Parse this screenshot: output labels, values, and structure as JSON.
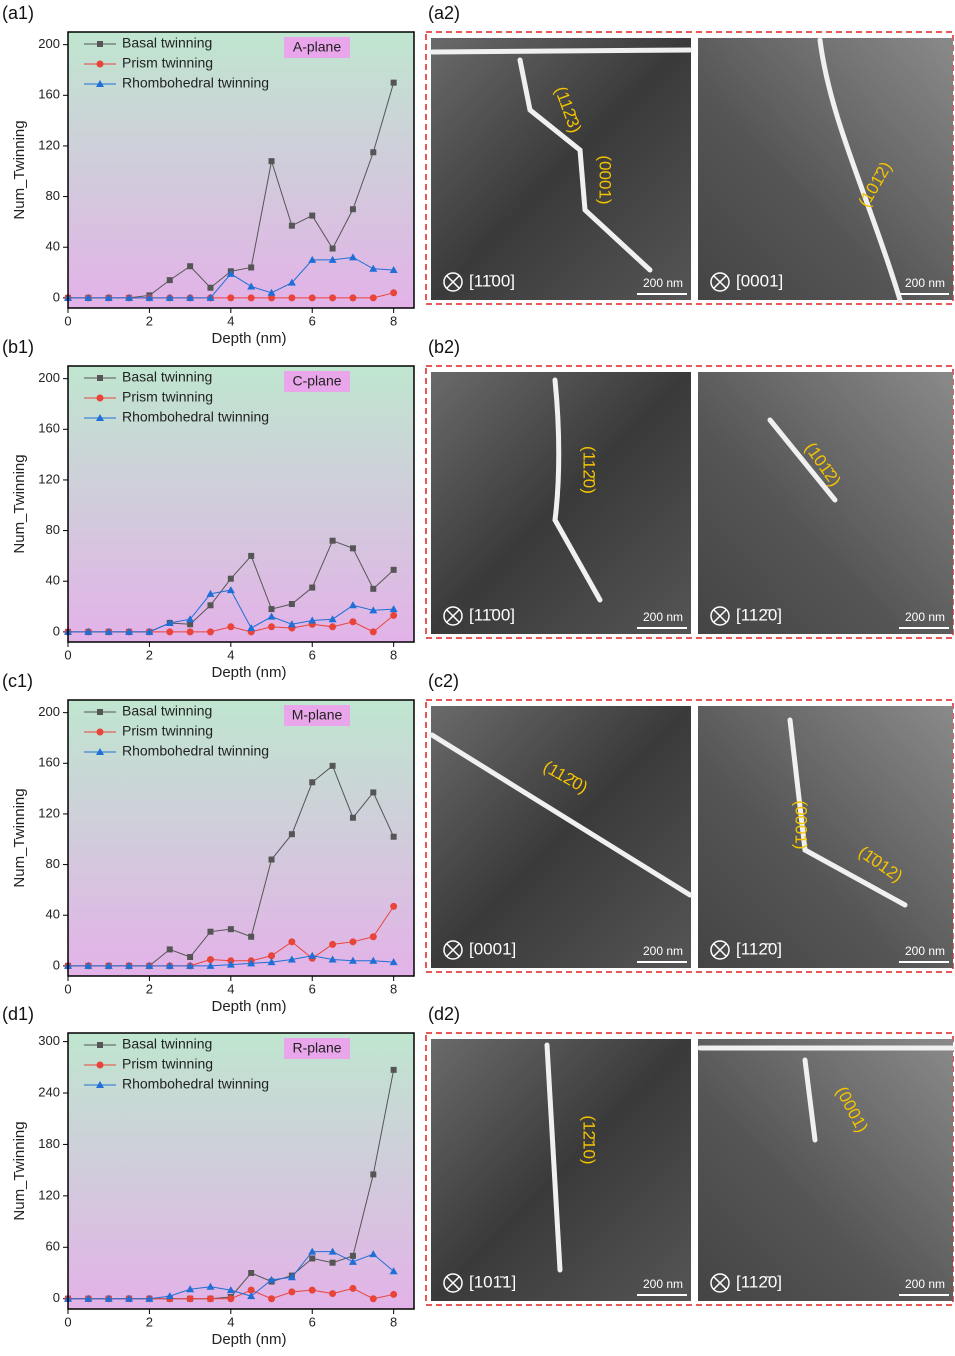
{
  "chart_data": [
    {
      "type": "line",
      "panel_label": "(a1)",
      "tag": "A-plane",
      "x_label": "Depth (nm)",
      "y_label": "Num_Twinning",
      "x": [
        0,
        0.5,
        1,
        1.5,
        2,
        2.5,
        3,
        3.5,
        4,
        4.5,
        5,
        5.5,
        6,
        6.5,
        7,
        7.5,
        8
      ],
      "xlim": [
        0,
        8.5
      ],
      "xticks": [
        0,
        2,
        4,
        6,
        8
      ],
      "ylim": [
        -8,
        210
      ],
      "yticks": [
        0,
        40,
        80,
        120,
        160,
        200
      ],
      "series": [
        {
          "name": "Basal twinning",
          "color": "#555555",
          "marker": "square",
          "values": [
            0,
            0,
            0,
            0,
            2,
            14,
            25,
            8,
            21,
            24,
            108,
            57,
            65,
            39,
            70,
            115,
            170
          ]
        },
        {
          "name": "Prism twinning",
          "color": "#e8443a",
          "marker": "circle",
          "values": [
            0,
            0,
            0,
            0,
            0,
            0,
            0,
            0,
            0,
            0,
            0,
            0,
            0,
            0,
            0,
            0,
            4
          ]
        },
        {
          "name": "Rhombohedral twinning",
          "color": "#1f6fd6",
          "marker": "triangle",
          "values": [
            0,
            0,
            0,
            0,
            0,
            0,
            0,
            0,
            19,
            9,
            4,
            12,
            30,
            30,
            32,
            23,
            22
          ]
        }
      ]
    },
    {
      "type": "line",
      "panel_label": "(b1)",
      "tag": "C-plane",
      "x_label": "Depth (nm)",
      "y_label": "Num_Twinning",
      "x": [
        0,
        0.5,
        1,
        1.5,
        2,
        2.5,
        3,
        3.5,
        4,
        4.5,
        5,
        5.5,
        6,
        6.5,
        7,
        7.5,
        8
      ],
      "xlim": [
        0,
        8.5
      ],
      "xticks": [
        0,
        2,
        4,
        6,
        8
      ],
      "ylim": [
        -8,
        210
      ],
      "yticks": [
        0,
        40,
        80,
        120,
        160,
        200
      ],
      "series": [
        {
          "name": "Basal twinning",
          "color": "#555555",
          "marker": "square",
          "values": [
            0,
            0,
            0,
            0,
            0,
            7,
            6,
            21,
            42,
            60,
            18,
            22,
            35,
            72,
            66,
            34,
            49
          ]
        },
        {
          "name": "Prism twinning",
          "color": "#e8443a",
          "marker": "circle",
          "values": [
            0,
            0,
            0,
            0,
            0,
            0,
            0,
            0,
            4,
            0,
            4,
            3,
            6,
            4,
            8,
            0,
            13
          ]
        },
        {
          "name": "Rhombohedral twinning",
          "color": "#1f6fd6",
          "marker": "triangle",
          "values": [
            0,
            0,
            0,
            0,
            0,
            7,
            10,
            30,
            33,
            3,
            12,
            6,
            9,
            10,
            21,
            17,
            18
          ]
        }
      ]
    },
    {
      "type": "line",
      "panel_label": "(c1)",
      "tag": "M-plane",
      "x_label": "Depth (nm)",
      "y_label": "Num_Twinning",
      "x": [
        0,
        0.5,
        1,
        1.5,
        2,
        2.5,
        3,
        3.5,
        4,
        4.5,
        5,
        5.5,
        6,
        6.5,
        7,
        7.5,
        8
      ],
      "xlim": [
        0,
        8.5
      ],
      "xticks": [
        0,
        2,
        4,
        6,
        8
      ],
      "ylim": [
        -8,
        210
      ],
      "yticks": [
        0,
        40,
        80,
        120,
        160,
        200
      ],
      "series": [
        {
          "name": "Basal twinning",
          "color": "#555555",
          "marker": "square",
          "values": [
            0,
            0,
            0,
            0,
            0,
            13,
            7,
            27,
            29,
            23,
            84,
            104,
            145,
            158,
            117,
            137,
            102
          ]
        },
        {
          "name": "Prism twinning",
          "color": "#e8443a",
          "marker": "circle",
          "values": [
            0,
            0,
            0,
            0,
            0,
            0,
            0,
            5,
            4,
            4,
            8,
            19,
            6,
            17,
            19,
            23,
            47
          ]
        },
        {
          "name": "Rhombohedral twinning",
          "color": "#1f6fd6",
          "marker": "triangle",
          "values": [
            0,
            0,
            0,
            0,
            0,
            0,
            0,
            0,
            1,
            2,
            3,
            5,
            8,
            5,
            4,
            4,
            3
          ]
        }
      ]
    },
    {
      "type": "line",
      "panel_label": "(d1)",
      "tag": "R-plane",
      "x_label": "Depth (nm)",
      "y_label": "Num_Twinning",
      "x": [
        0,
        0.5,
        1,
        1.5,
        2,
        2.5,
        3,
        3.5,
        4,
        4.5,
        5,
        5.5,
        6,
        6.5,
        7,
        7.5,
        8
      ],
      "xlim": [
        0,
        8.5
      ],
      "xticks": [
        0,
        2,
        4,
        6,
        8
      ],
      "ylim": [
        -12,
        310
      ],
      "yticks": [
        0,
        60,
        120,
        180,
        240,
        300
      ],
      "series": [
        {
          "name": "Basal twinning",
          "color": "#555555",
          "marker": "square",
          "values": [
            0,
            0,
            0,
            0,
            0,
            0,
            0,
            0,
            2,
            30,
            20,
            27,
            47,
            42,
            50,
            145,
            267
          ]
        },
        {
          "name": "Prism twinning",
          "color": "#e8443a",
          "marker": "circle",
          "values": [
            0,
            0,
            0,
            0,
            0,
            0,
            0,
            0,
            0,
            10,
            0,
            8,
            10,
            6,
            12,
            0,
            5
          ]
        },
        {
          "name": "Rhombohedral twinning",
          "color": "#1f6fd6",
          "marker": "triangle",
          "values": [
            0,
            0,
            0,
            0,
            0,
            3,
            11,
            14,
            10,
            3,
            22,
            25,
            55,
            55,
            43,
            52,
            32
          ]
        }
      ]
    }
  ],
  "micrographs": [
    {
      "panel_label": "(a2)",
      "images": [
        {
          "zone_axis": "[11̄00]",
          "planes": [
            "(112̄3)",
            "(0001)"
          ],
          "scale_bar": "200 nm"
        },
        {
          "zone_axis": "[0001]",
          "planes": [
            "(101̄2)"
          ],
          "scale_bar": "200 nm"
        }
      ]
    },
    {
      "panel_label": "(b2)",
      "images": [
        {
          "zone_axis": "[11̄00]",
          "planes": [
            "(112̄0)"
          ],
          "scale_bar": "200 nm"
        },
        {
          "zone_axis": "[112̄0]",
          "planes": [
            "(101̄2)"
          ],
          "scale_bar": "200 nm"
        }
      ]
    },
    {
      "panel_label": "(c2)",
      "images": [
        {
          "zone_axis": "[0001]",
          "planes": [
            "(112̄0)"
          ],
          "scale_bar": "200 nm"
        },
        {
          "zone_axis": "[112̄0]",
          "planes": [
            "(0001)",
            "(1̄012)"
          ],
          "scale_bar": "200 nm"
        }
      ]
    },
    {
      "panel_label": "(d2)",
      "images": [
        {
          "zone_axis": "[101̄1]",
          "planes": [
            "(12̄10)"
          ],
          "scale_bar": "200 nm"
        },
        {
          "zone_axis": "[112̄0]",
          "planes": [
            "(0001)"
          ],
          "scale_bar": "200 nm"
        }
      ]
    }
  ]
}
